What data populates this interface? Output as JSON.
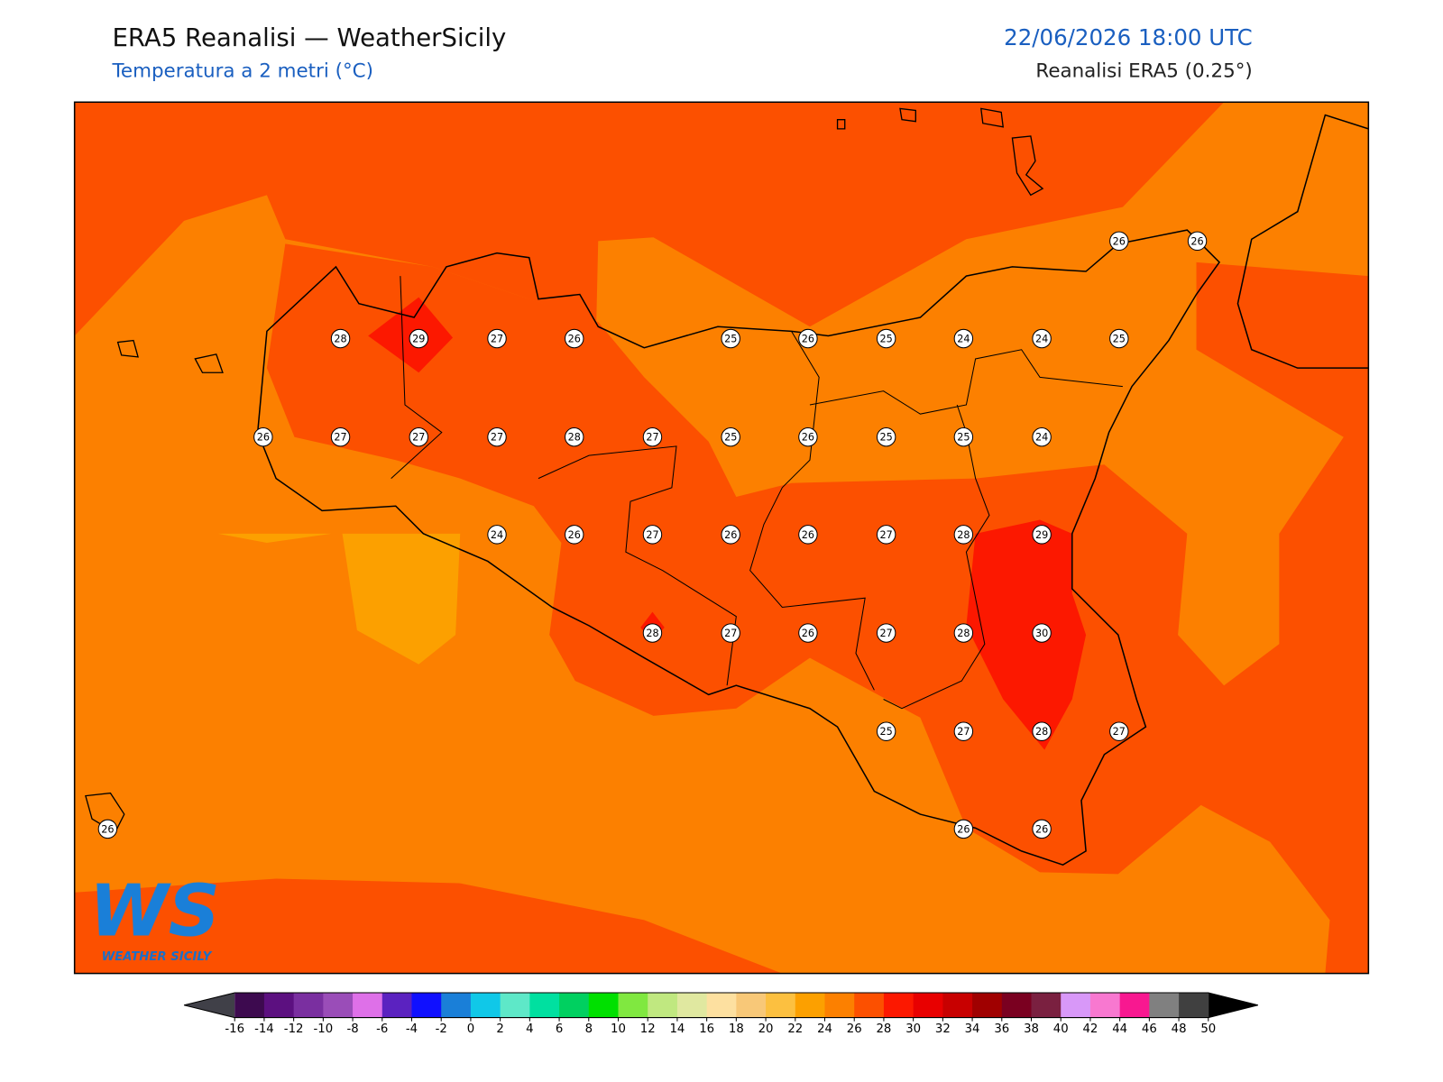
{
  "header": {
    "title": "ERA5 Reanalisi — WeatherSicily",
    "subtitle": "Temperatura a 2 metri (°C)",
    "datetime": "22/06/2026 18:00 UTC",
    "source": "Reanalisi ERA5 (0.25°)"
  },
  "points": [
    26,
    26,
    28,
    29,
    27,
    26,
    25,
    26,
    25,
    24,
    24,
    25,
    26,
    27,
    27,
    27,
    28,
    27,
    25,
    26,
    25,
    25,
    24,
    24,
    26,
    27,
    26,
    26,
    27,
    28,
    29,
    28,
    27,
    26,
    27,
    28,
    30,
    25,
    27,
    28,
    27,
    26,
    26,
    26
  ],
  "logo": {
    "mark": "WS",
    "text": "WEATHER SICILY"
  },
  "colorbar": {
    "ticks": [
      -16,
      -14,
      -12,
      -10,
      -8,
      -6,
      -4,
      -2,
      0,
      2,
      4,
      6,
      8,
      10,
      12,
      14,
      16,
      18,
      20,
      22,
      24,
      26,
      28,
      30,
      32,
      34,
      36,
      38,
      40,
      42,
      44,
      46,
      48,
      50
    ],
    "colors": [
      "#3d0a4f",
      "#5c1080",
      "#7a2fa0",
      "#9a4db8",
      "#de70e8",
      "#5b22c0",
      "#1010ff",
      "#1a7fd8",
      "#10c8e8",
      "#5ee8c8",
      "#00e0a0",
      "#00d060",
      "#00e000",
      "#80e840",
      "#c0e880",
      "#e0e8a0",
      "#fde0a0",
      "#f8c878",
      "#fcc040",
      "#fca000",
      "#fc8000",
      "#fc5000",
      "#fc1800",
      "#e80000",
      "#c80000",
      "#a00000",
      "#7a0020",
      "#7a2040",
      "#d898f8",
      "#f878d0",
      "#f81890",
      "#808080",
      "#404040"
    ],
    "under_color": "#404048",
    "over_color": "#000000"
  }
}
